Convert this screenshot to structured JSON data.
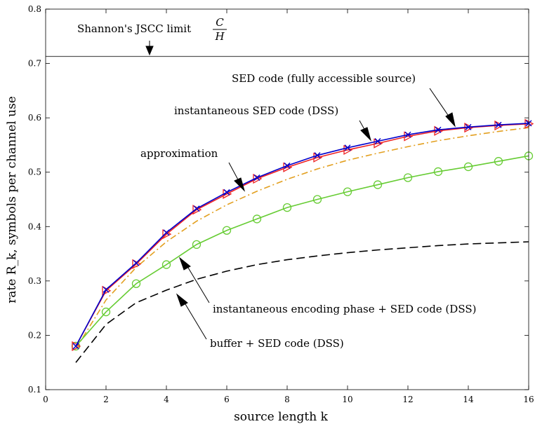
{
  "chart_data": {
    "type": "line",
    "xlabel": "source length k",
    "ylabel": "rate R_k, symbols per channel use",
    "xlim": [
      0,
      16
    ],
    "ylim": [
      0.1,
      0.8
    ],
    "xticks": [
      0,
      2,
      4,
      6,
      8,
      10,
      12,
      14,
      16
    ],
    "yticks": [
      0.1,
      0.2,
      0.3,
      0.4,
      0.5,
      0.6,
      0.7,
      0.8
    ],
    "xtick_labels": [
      "0",
      "2",
      "4",
      "6",
      "8",
      "10",
      "12",
      "14",
      "16"
    ],
    "ytick_labels": [
      "0.1",
      "0.2",
      "0.3",
      "0.4",
      "0.5",
      "0.6",
      "0.7",
      "0.8"
    ],
    "grid": false,
    "shannon_limit": {
      "value": 0.713,
      "label": "Shannon's JSCC limit",
      "num": "C",
      "den": "H",
      "color": "#555555"
    },
    "series": [
      {
        "name": "SED code (fully accessible source)",
        "style": "solid",
        "marker": "x",
        "color": "#0000cc",
        "x": [
          1,
          2,
          3,
          4,
          5,
          6,
          7,
          8,
          9,
          10,
          11,
          12,
          13,
          14,
          15,
          16
        ],
        "y": [
          0.18,
          0.284,
          0.333,
          0.389,
          0.433,
          0.463,
          0.49,
          0.512,
          0.531,
          0.545,
          0.557,
          0.569,
          0.578,
          0.583,
          0.587,
          0.59
        ]
      },
      {
        "name": "instantaneous SED code (DSS)",
        "style": "solid",
        "marker": "triangle-right",
        "color": "#ee2222",
        "x": [
          1,
          2,
          3,
          4,
          5,
          6,
          7,
          8,
          9,
          10,
          11,
          12,
          13,
          14,
          15,
          16
        ],
        "y": [
          0.18,
          0.282,
          0.331,
          0.386,
          0.431,
          0.46,
          0.488,
          0.509,
          0.527,
          0.541,
          0.553,
          0.566,
          0.576,
          0.582,
          0.586,
          0.589
        ]
      },
      {
        "name": "approximation",
        "style": "dashdot",
        "marker": "none",
        "color": "#e3a020",
        "x": [
          1,
          2,
          3,
          4,
          5,
          6,
          7,
          8,
          9,
          10,
          11,
          12,
          13,
          14,
          15,
          16
        ],
        "y": [
          0.175,
          0.265,
          0.325,
          0.372,
          0.41,
          0.44,
          0.465,
          0.487,
          0.506,
          0.522,
          0.535,
          0.547,
          0.558,
          0.567,
          0.575,
          0.582
        ]
      },
      {
        "name": "instantaneous encoding phase + SED code (DSS)",
        "style": "solid",
        "marker": "circle",
        "color": "#66cc33",
        "x": [
          1,
          2,
          3,
          4,
          5,
          6,
          7,
          8,
          9,
          10,
          11,
          12,
          13,
          14,
          15,
          16
        ],
        "y": [
          0.18,
          0.243,
          0.295,
          0.33,
          0.367,
          0.393,
          0.414,
          0.435,
          0.45,
          0.464,
          0.477,
          0.49,
          0.501,
          0.51,
          0.52,
          0.53
        ]
      },
      {
        "name": "buffer + SED code (DSS)",
        "style": "dashed",
        "marker": "none",
        "color": "#000000",
        "x": [
          1,
          2,
          3,
          4,
          5,
          6,
          7,
          8,
          9,
          10,
          11,
          12,
          13,
          14,
          15,
          16
        ],
        "y": [
          0.15,
          0.22,
          0.26,
          0.283,
          0.303,
          0.318,
          0.33,
          0.339,
          0.346,
          0.352,
          0.357,
          0.361,
          0.365,
          0.368,
          0.37,
          0.372
        ]
      }
    ],
    "annotations": [
      {
        "text": "SED code (fully accessible source)"
      },
      {
        "text": "instantaneous SED code (DSS)"
      },
      {
        "text": "approximation"
      },
      {
        "text": "instantaneous encoding phase + SED code (DSS)"
      },
      {
        "text": "buffer + SED code (DSS)"
      }
    ]
  }
}
